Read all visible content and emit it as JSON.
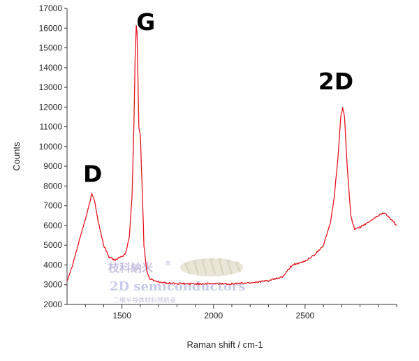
{
  "chart_data": {
    "type": "line",
    "title": "",
    "xlabel": "Raman shift / cm-1",
    "ylabel": "Counts",
    "xlim": [
      1200,
      3000
    ],
    "ylim": [
      2000,
      17000
    ],
    "xticks": [
      1500,
      2000,
      2500
    ],
    "yticks": [
      2000,
      3000,
      4000,
      5000,
      6000,
      7000,
      8000,
      9000,
      10000,
      11000,
      12000,
      13000,
      14000,
      15000,
      16000,
      17000
    ],
    "grid": false,
    "legend": "none",
    "series": [
      {
        "color": "#e8141e",
        "x": [
          1200,
          1230,
          1260,
          1280,
          1300,
          1320,
          1335,
          1350,
          1370,
          1400,
          1430,
          1460,
          1480,
          1500,
          1520,
          1540,
          1555,
          1565,
          1572,
          1578,
          1582,
          1587,
          1592,
          1600,
          1610,
          1620,
          1635,
          1650,
          1680,
          1720,
          1800,
          1900,
          2000,
          2100,
          2200,
          2300,
          2380,
          2420,
          2440,
          2460,
          2500,
          2550,
          2600,
          2640,
          2660,
          2680,
          2695,
          2705,
          2715,
          2730,
          2750,
          2770,
          2800,
          2850,
          2900,
          2930,
          2950,
          2970,
          3000
        ],
        "y": [
          3200,
          4000,
          5000,
          5700,
          6300,
          7000,
          7600,
          7300,
          6200,
          5000,
          4400,
          4250,
          4350,
          4400,
          4600,
          5400,
          7500,
          11000,
          14500,
          16100,
          15800,
          13500,
          11000,
          10600,
          8000,
          5000,
          3700,
          3300,
          3200,
          3100,
          3050,
          3050,
          3050,
          3050,
          3100,
          3200,
          3400,
          3900,
          4050,
          4050,
          4200,
          4500,
          5000,
          6200,
          7500,
          9500,
          11500,
          12000,
          11500,
          9000,
          6500,
          5800,
          5900,
          6200,
          6500,
          6650,
          6500,
          6300,
          6000
        ]
      }
    ],
    "annotations": [
      {
        "text": "D",
        "x": 1340,
        "y": 8200
      },
      {
        "text": "G",
        "x": 1630,
        "y": 15900
      },
      {
        "text": "2D",
        "x": 2668,
        "y": 12900
      }
    ]
  },
  "watermark": {
    "cn_title": "枝科納米",
    "registered": "®",
    "en_title": "2D semiconductors",
    "cn_sub": "二维半导体材料领航者",
    "crystal_icon": "crystal-lattice-icon"
  }
}
